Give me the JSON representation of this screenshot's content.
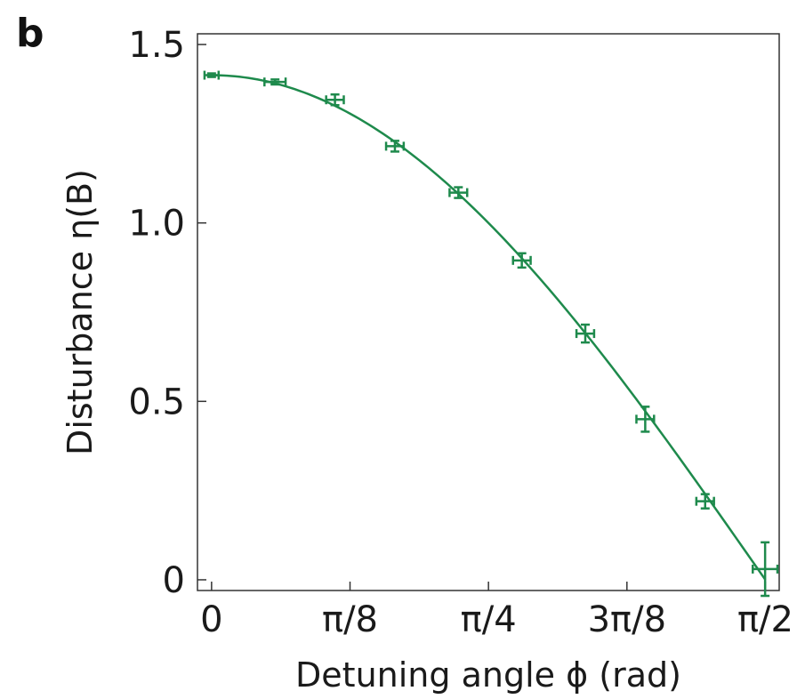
{
  "panel_label": "b",
  "colors": {
    "series": "#1e8a4c",
    "axis": "#333333"
  },
  "chart_data": {
    "type": "scatter",
    "xlabel": "Detuning angle ϕ (rad)",
    "ylabel": "Disturbance η(B)",
    "xlim": [
      -0.04,
      1.61
    ],
    "ylim": [
      -0.03,
      1.53
    ],
    "xticks": [
      {
        "value": 0,
        "label": "0"
      },
      {
        "value": 0.3927,
        "label": "π/8"
      },
      {
        "value": 0.7854,
        "label": "π/4"
      },
      {
        "value": 1.1781,
        "label": "3π/8"
      },
      {
        "value": 1.5708,
        "label": "π/2"
      }
    ],
    "yticks": [
      {
        "value": 0,
        "label": "0"
      },
      {
        "value": 0.5,
        "label": "0.5"
      },
      {
        "value": 1.0,
        "label": "1.0"
      },
      {
        "value": 1.5,
        "label": "1.5"
      }
    ],
    "grid": false,
    "fit": {
      "type": "line",
      "x_range": [
        0,
        1.5708
      ],
      "amplitude": 1.414
    },
    "points": [
      {
        "x": 0.0,
        "y": 1.414,
        "xerr": 0.02,
        "yerr": 0.005
      },
      {
        "x": 0.18,
        "y": 1.395,
        "xerr": 0.03,
        "yerr": 0.007
      },
      {
        "x": 0.35,
        "y": 1.345,
        "xerr": 0.025,
        "yerr": 0.015
      },
      {
        "x": 0.52,
        "y": 1.215,
        "xerr": 0.025,
        "yerr": 0.015
      },
      {
        "x": 0.7,
        "y": 1.085,
        "xerr": 0.025,
        "yerr": 0.015
      },
      {
        "x": 0.88,
        "y": 0.895,
        "xerr": 0.025,
        "yerr": 0.02
      },
      {
        "x": 1.06,
        "y": 0.69,
        "xerr": 0.025,
        "yerr": 0.025
      },
      {
        "x": 1.23,
        "y": 0.45,
        "xerr": 0.025,
        "yerr": 0.035
      },
      {
        "x": 1.4,
        "y": 0.22,
        "xerr": 0.025,
        "yerr": 0.02
      },
      {
        "x": 1.57,
        "y": 0.03,
        "xerr": 0.035,
        "yerr": 0.075
      }
    ]
  }
}
